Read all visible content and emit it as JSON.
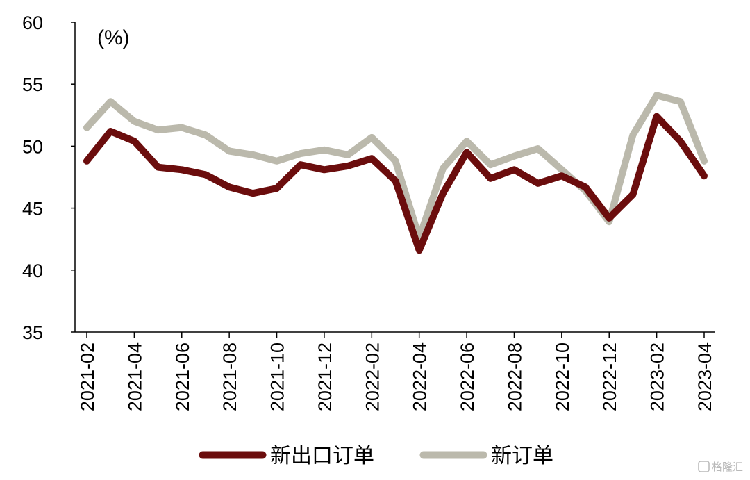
{
  "chart_data": {
    "type": "line",
    "title": "",
    "xlabel": "",
    "ylabel": "(%)",
    "ylim": [
      35,
      60
    ],
    "yticks": [
      35,
      40,
      45,
      50,
      55,
      60
    ],
    "grid": false,
    "legend_position": "bottom",
    "x": [
      "2021-02",
      "2021-03",
      "2021-04",
      "2021-05",
      "2021-06",
      "2021-07",
      "2021-08",
      "2021-09",
      "2021-10",
      "2021-11",
      "2021-12",
      "2022-01",
      "2022-02",
      "2022-03",
      "2022-04",
      "2022-05",
      "2022-06",
      "2022-07",
      "2022-08",
      "2022-09",
      "2022-10",
      "2022-11",
      "2022-12",
      "2023-01",
      "2023-02",
      "2023-03",
      "2023-04"
    ],
    "x_tick_labels": [
      "2021-02",
      "2021-04",
      "2021-06",
      "2021-08",
      "2021-10",
      "2021-12",
      "2022-02",
      "2022-04",
      "2022-06",
      "2022-08",
      "2022-10",
      "2022-12",
      "2023-02",
      "2023-04"
    ],
    "series": [
      {
        "name": "新出口订单",
        "color": "#6b0d0d",
        "values": [
          48.8,
          51.2,
          50.4,
          48.3,
          48.1,
          47.7,
          46.7,
          46.2,
          46.6,
          48.5,
          48.1,
          48.4,
          49.0,
          47.2,
          41.6,
          46.2,
          49.5,
          47.4,
          48.1,
          47.0,
          47.6,
          46.7,
          44.2,
          46.1,
          52.4,
          50.4,
          47.6
        ]
      },
      {
        "name": "新订单",
        "color": "#bbb9ac",
        "values": [
          51.5,
          53.6,
          52.0,
          51.3,
          51.5,
          50.9,
          49.6,
          49.3,
          48.8,
          49.4,
          49.7,
          49.3,
          50.7,
          48.8,
          42.6,
          48.2,
          50.4,
          48.5,
          49.2,
          49.8,
          48.1,
          46.4,
          43.9,
          50.9,
          54.1,
          53.6,
          48.8
        ]
      }
    ]
  },
  "legend": {
    "items": [
      {
        "label": "新出口订单",
        "color": "#6b0d0d"
      },
      {
        "label": "新订单",
        "color": "#bbb9ac"
      }
    ]
  },
  "watermark": "格隆汇"
}
